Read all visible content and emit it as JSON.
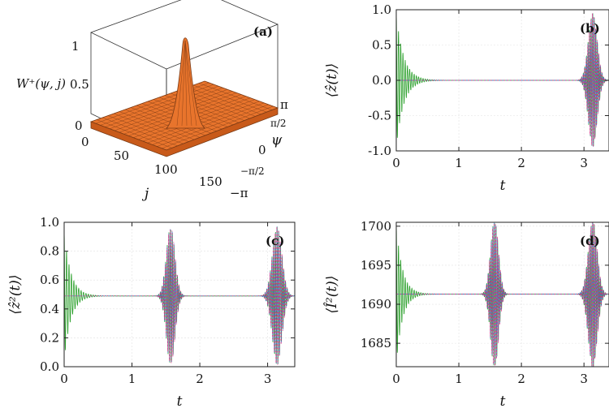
{
  "panel_a": {
    "label": "(a)",
    "zlabel": "W⁺(ψ, j)",
    "xlabel": "j",
    "ylabel": "ψ",
    "z_ticks": [
      "0",
      "0.5",
      "1"
    ],
    "j_ticks": [
      "0",
      "50",
      "100",
      "150"
    ],
    "psi_ticks": [
      "π",
      "π/2",
      "0",
      "−π/2",
      "−π"
    ],
    "surface_color": "#e8742c"
  },
  "chart_data": [
    {
      "type": "line",
      "panel": "b",
      "label": "(b)",
      "xlabel": "t",
      "ylabel": "⟨ẑ(t)⟩",
      "xlim": [
        0,
        3.4
      ],
      "ylim": [
        -1.0,
        1.0
      ],
      "x_ticks": [
        "0",
        "1",
        "2",
        "3"
      ],
      "y_ticks": [
        "-1.0",
        "-0.5",
        "0.0",
        "0.5",
        "1.0"
      ],
      "grid": true,
      "baseline": 0.0,
      "bursts": [
        {
          "center": 0.05,
          "amplitude": 0.95,
          "decay": 0.12,
          "series": "green-only"
        },
        {
          "center": 3.14,
          "amplitude": 0.95,
          "width": 0.1,
          "series": "all"
        }
      ],
      "series": [
        {
          "color": "#2ca02c"
        },
        {
          "color": "#3b6fd8"
        },
        {
          "color": "#e0287a"
        }
      ]
    },
    {
      "type": "line",
      "panel": "c",
      "label": "(c)",
      "xlabel": "t",
      "ylabel": "⟨ẑ²(t)⟩",
      "xlim": [
        0,
        3.4
      ],
      "ylim": [
        0.0,
        1.0
      ],
      "x_ticks": [
        "0",
        "1",
        "2",
        "3"
      ],
      "y_ticks": [
        "0.0",
        "0.2",
        "0.4",
        "0.6",
        "0.8",
        "1.0"
      ],
      "grid": true,
      "baseline": 0.49,
      "bursts": [
        {
          "center": 0.05,
          "amplitude": 0.45,
          "decay": 0.1,
          "series": "green-only"
        },
        {
          "center": 1.57,
          "amplitude": 0.48,
          "width": 0.09,
          "series": "all"
        },
        {
          "center": 3.14,
          "amplitude": 0.48,
          "width": 0.1,
          "series": "all"
        }
      ],
      "series": [
        {
          "color": "#2ca02c"
        },
        {
          "color": "#3b6fd8"
        },
        {
          "color": "#e0287a"
        }
      ]
    },
    {
      "type": "line",
      "panel": "d",
      "label": "(d)",
      "xlabel": "t",
      "ylabel": "⟨Î²(t)⟩",
      "xlim": [
        0,
        3.4
      ],
      "ylim": [
        1682,
        1700.5
      ],
      "x_ticks": [
        "0",
        "1",
        "2",
        "3"
      ],
      "y_ticks": [
        "1685",
        "1690",
        "1695",
        "1700"
      ],
      "grid": true,
      "baseline": 1691.3,
      "bursts": [
        {
          "center": 0.05,
          "amplitude": 9.0,
          "decay": 0.1,
          "series": "green-only"
        },
        {
          "center": 1.57,
          "amplitude": 9.5,
          "width": 0.09,
          "series": "all"
        },
        {
          "center": 3.14,
          "amplitude": 9.5,
          "width": 0.1,
          "series": "all"
        }
      ],
      "series": [
        {
          "color": "#2ca02c"
        },
        {
          "color": "#3b6fd8"
        },
        {
          "color": "#e0287a"
        }
      ]
    }
  ]
}
